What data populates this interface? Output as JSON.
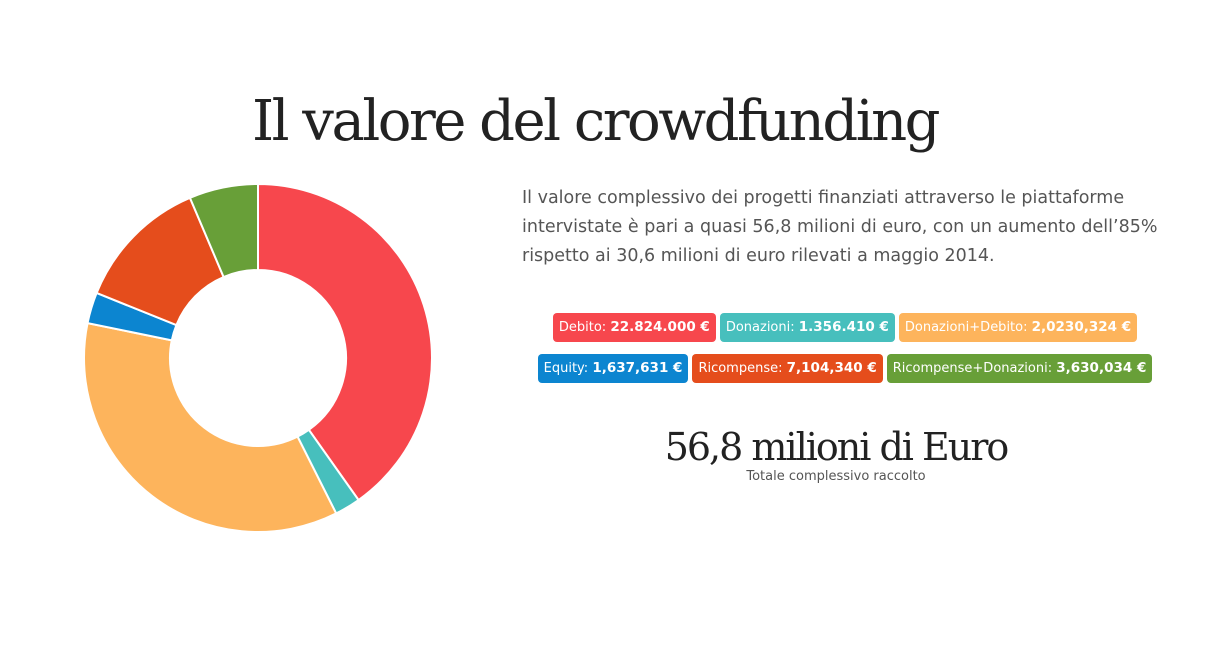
{
  "title": "Il valore del crowdfunding",
  "description": "Il valore complessivo dei progetti finanziati attraverso le piattaforme intervistate è pari a quasi 56,8 milioni di euro, con un aumento dell’85% rispetto ai 30,6 milioni di euro rilevati a maggio 2014.",
  "total": {
    "value": "56,8 milioni di Euro",
    "label": "Totale complessivo raccolto"
  },
  "legend_rows": [
    [
      {
        "label": "Debito:",
        "value": "22.824.000 €",
        "color": "#f7474d"
      },
      {
        "label": "Donazioni:",
        "value": "1.356.410 €",
        "color": "#47bfbd"
      },
      {
        "label": "Donazioni+Debito:",
        "value": "2,0230,324 €",
        "color": "#fdb45c"
      }
    ],
    [
      {
        "label": "Equity:",
        "value": "1,637,631 €",
        "color": "#0c85d0"
      },
      {
        "label": "Ricompense:",
        "value": "7,104,340 €",
        "color": "#e54d1c"
      },
      {
        "label": "Ricompense+Donazioni:",
        "value": "3,630,034 €",
        "color": "#689f38"
      }
    ]
  ],
  "chart_data": {
    "type": "pie",
    "donut": true,
    "categories": [
      "Debito",
      "Donazioni",
      "Donazioni+Debito",
      "Equity",
      "Ricompense",
      "Ricompense+Donazioni"
    ],
    "values": [
      22824000,
      1356410,
      20230324,
      1637631,
      7104340,
      3630034
    ],
    "colors": [
      "#f7474d",
      "#47bfbd",
      "#fdb45c",
      "#0c85d0",
      "#e54d1c",
      "#689f38"
    ]
  }
}
